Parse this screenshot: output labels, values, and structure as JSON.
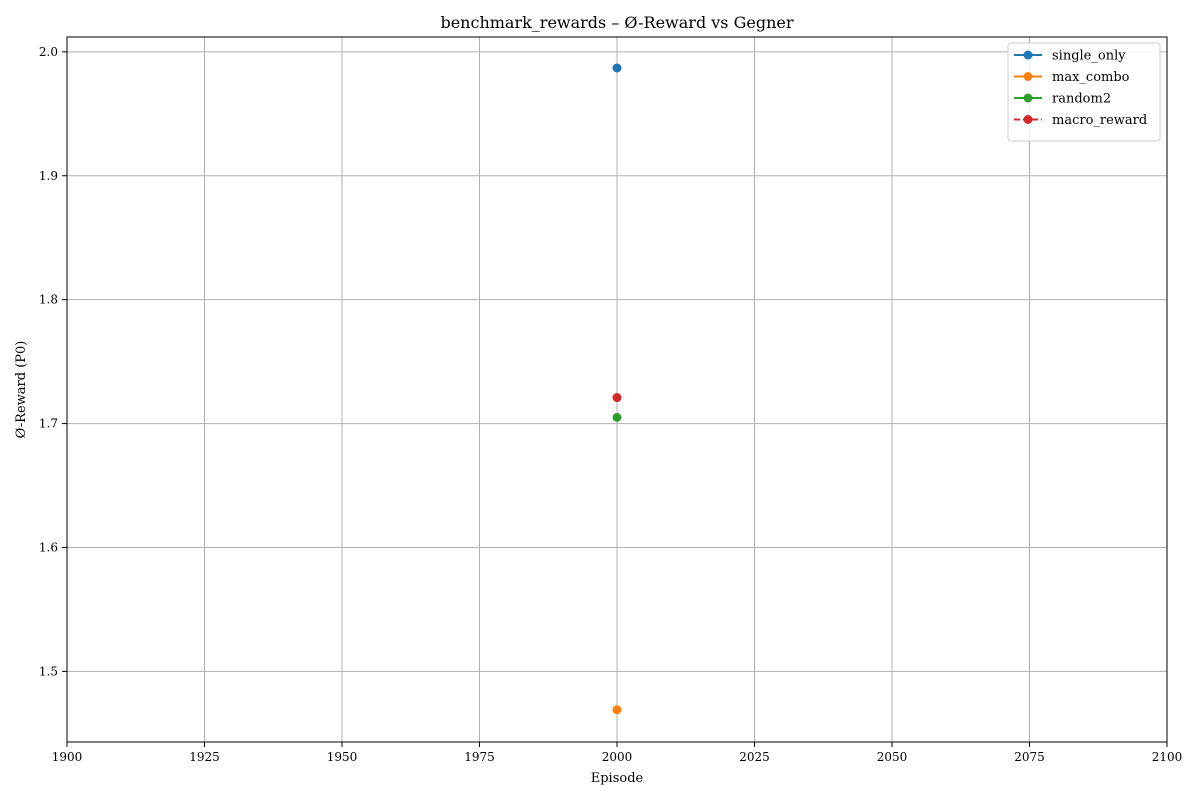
{
  "chart_data": {
    "type": "scatter",
    "title": "benchmark_rewards – Ø-Reward vs Gegner",
    "xlabel": "Episode",
    "ylabel": "Ø-Reward (P0)",
    "xlim": [
      1900,
      2100
    ],
    "ylim": [
      1.443,
      2.012
    ],
    "xticks": [
      1900,
      1925,
      1950,
      1975,
      2000,
      2025,
      2050,
      2075,
      2100
    ],
    "yticks": [
      1.5,
      1.6,
      1.7,
      1.8,
      1.9,
      2.0
    ],
    "xtick_labels": [
      "1900",
      "1925",
      "1950",
      "1975",
      "2000",
      "2025",
      "2050",
      "2075",
      "2100"
    ],
    "ytick_labels": [
      "1.5",
      "1.6",
      "1.7",
      "1.8",
      "1.9",
      "2.0"
    ],
    "grid": true,
    "legend_position": "top-right",
    "series": [
      {
        "name": "single_only",
        "color": "#1f77b4",
        "line_style": "solid",
        "x": [
          2000
        ],
        "y": [
          1.987
        ]
      },
      {
        "name": "max_combo",
        "color": "#ff7f0e",
        "line_style": "solid",
        "x": [
          2000
        ],
        "y": [
          1.469
        ]
      },
      {
        "name": "random2",
        "color": "#2ca02c",
        "line_style": "solid",
        "x": [
          2000
        ],
        "y": [
          1.705
        ]
      },
      {
        "name": "macro_reward",
        "color": "#d62728",
        "line_style": "dashed",
        "x": [
          2000
        ],
        "y": [
          1.721
        ]
      }
    ]
  }
}
